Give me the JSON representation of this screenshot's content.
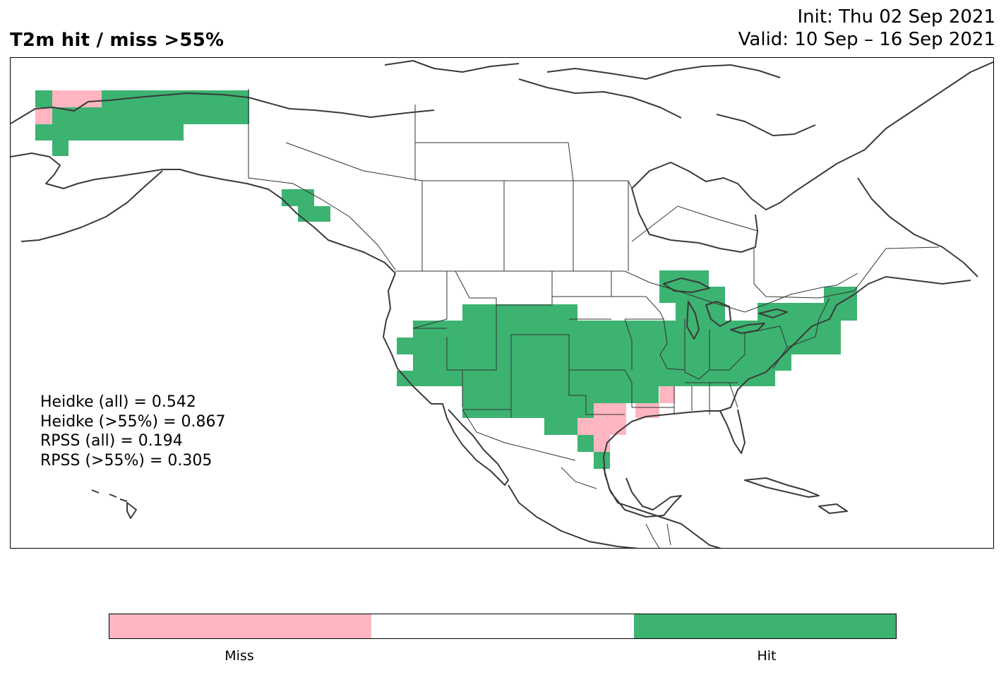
{
  "title": "T2m hit / miss  >55%",
  "init": "Init: Thu 02 Sep 2021",
  "valid": "Valid: 10 Sep – 16 Sep 2021",
  "stats": [
    "Heidke (all) = 0.542",
    "Heidke (>55%) = 0.867",
    "RPSS (all) = 0.194",
    "RPSS (>55%) = 0.305"
  ],
  "colorbar": {
    "segments": [
      {
        "label": "Miss",
        "color": "#ffb6c1"
      },
      {
        "label": "",
        "color": "#ffffff"
      },
      {
        "label": "Hit",
        "color": "#3cb371"
      }
    ]
  },
  "colors": {
    "hit": "#3cb371",
    "miss": "#ffb6c1",
    "coast": "#3a3a3a",
    "border": "#000000"
  }
}
